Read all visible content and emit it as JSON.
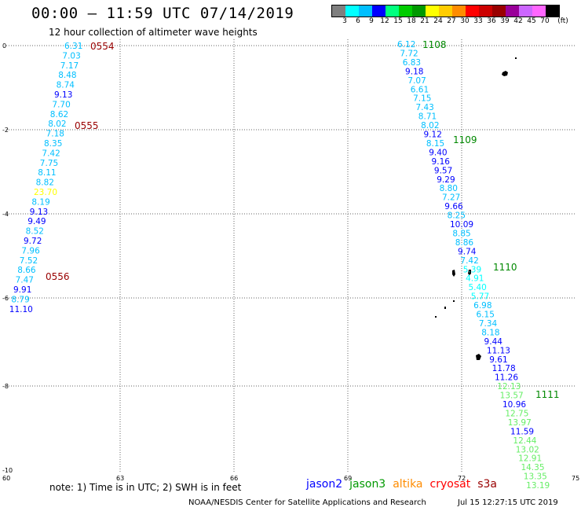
{
  "title": "00:00 — 11:59 UTC 07/14/2019",
  "subtitle": "12 hour collection of altimeter wave heights",
  "colorbar": {
    "unit_label": "(ft)",
    "labels": [
      "3",
      "6",
      "9",
      "12",
      "15",
      "18",
      "21",
      "24",
      "27",
      "30",
      "33",
      "36",
      "39",
      "42",
      "45",
      "70"
    ],
    "colors": [
      "#7f7f7f",
      "#00ffff",
      "#00bfff",
      "#0000ff",
      "#00ff7f",
      "#00cc00",
      "#009900",
      "#ffff00",
      "#ffcc00",
      "#ff8c00",
      "#ff0000",
      "#cc0000",
      "#990000",
      "#990099",
      "#cc66ff",
      "#ff66ff",
      "#000000"
    ]
  },
  "axes": {
    "x_ticks": [
      "60",
      "63",
      "66",
      "69",
      "72",
      "75"
    ],
    "y_ticks": [
      "0",
      "-2",
      "-4",
      "-6",
      "-8",
      "-10"
    ]
  },
  "pass_colors": {
    "jason2": "#0000ff",
    "cyan": "#00bfff",
    "s3a": "#00ffff",
    "light": "#66ee66",
    "warn": "#ffff00",
    "time": "#990000",
    "time_green": "#008800"
  },
  "tracks": [
    {
      "labels": [
        {
          "v": "6.31",
          "c": "cyan"
        },
        {
          "v": "7.03",
          "c": "cyan"
        },
        {
          "v": "7.17",
          "c": "cyan"
        },
        {
          "v": "8.48",
          "c": "cyan"
        },
        {
          "v": "8.74",
          "c": "cyan"
        },
        {
          "v": "9.13",
          "c": "jason2"
        },
        {
          "v": "7.70",
          "c": "cyan"
        },
        {
          "v": "8.62",
          "c": "cyan"
        },
        {
          "v": "8.02",
          "c": "cyan"
        },
        {
          "v": "7.18",
          "c": "cyan"
        },
        {
          "v": "8.35",
          "c": "cyan"
        },
        {
          "v": "7.42",
          "c": "cyan"
        },
        {
          "v": "7.75",
          "c": "cyan"
        },
        {
          "v": "8.11",
          "c": "cyan"
        },
        {
          "v": "8.82",
          "c": "cyan"
        },
        {
          "v": "23.70",
          "c": "warn"
        },
        {
          "v": "8.19",
          "c": "cyan"
        },
        {
          "v": "9.13",
          "c": "jason2"
        },
        {
          "v": "9.49",
          "c": "jason2"
        },
        {
          "v": "8.52",
          "c": "cyan"
        },
        {
          "v": "9.72",
          "c": "jason2"
        },
        {
          "v": "7.96",
          "c": "cyan"
        },
        {
          "v": "7.52",
          "c": "cyan"
        },
        {
          "v": "8.66",
          "c": "cyan"
        },
        {
          "v": "7.47",
          "c": "cyan"
        },
        {
          "v": "9.91",
          "c": "jason2"
        },
        {
          "v": "8.79",
          "c": "cyan"
        },
        {
          "v": "11.10",
          "c": "jason2"
        }
      ]
    },
    {
      "labels": [
        {
          "v": "6.12",
          "c": "cyan"
        },
        {
          "v": "7.72",
          "c": "cyan"
        },
        {
          "v": "6.83",
          "c": "cyan"
        },
        {
          "v": "9.18",
          "c": "jason2"
        },
        {
          "v": "7.07",
          "c": "cyan"
        },
        {
          "v": "6.61",
          "c": "cyan"
        },
        {
          "v": "7.15",
          "c": "cyan"
        },
        {
          "v": "7.43",
          "c": "cyan"
        },
        {
          "v": "8.71",
          "c": "cyan"
        },
        {
          "v": "8.02",
          "c": "cyan"
        },
        {
          "v": "9.12",
          "c": "jason2"
        },
        {
          "v": "8.15",
          "c": "cyan"
        },
        {
          "v": "9.40",
          "c": "jason2"
        },
        {
          "v": "9.16",
          "c": "jason2"
        },
        {
          "v": "9.57",
          "c": "jason2"
        },
        {
          "v": "9.29",
          "c": "jason2"
        },
        {
          "v": "8.80",
          "c": "cyan"
        },
        {
          "v": "7.27",
          "c": "cyan"
        },
        {
          "v": "9.66",
          "c": "jason2"
        },
        {
          "v": "8.25",
          "c": "cyan"
        },
        {
          "v": "10.09",
          "c": "jason2"
        },
        {
          "v": "8.85",
          "c": "cyan"
        },
        {
          "v": "8.86",
          "c": "cyan"
        },
        {
          "v": "9.74",
          "c": "jason2"
        },
        {
          "v": "7.42",
          "c": "cyan"
        },
        {
          "v": "5.39",
          "c": "s3a"
        },
        {
          "v": "4.91",
          "c": "s3a"
        },
        {
          "v": "5.40",
          "c": "s3a"
        },
        {
          "v": "5.77",
          "c": "s3a"
        },
        {
          "v": "6.98",
          "c": "cyan"
        },
        {
          "v": "6.15",
          "c": "cyan"
        },
        {
          "v": "7.34",
          "c": "cyan"
        },
        {
          "v": "8.18",
          "c": "cyan"
        },
        {
          "v": "9.44",
          "c": "jason2"
        },
        {
          "v": "11.13",
          "c": "jason2"
        },
        {
          "v": "9.61",
          "c": "jason2"
        },
        {
          "v": "11.78",
          "c": "jason2"
        },
        {
          "v": "11.26",
          "c": "jason2"
        },
        {
          "v": "12.13",
          "c": "light"
        },
        {
          "v": "13.57",
          "c": "light"
        },
        {
          "v": "10.96",
          "c": "jason2"
        },
        {
          "v": "12.75",
          "c": "light"
        },
        {
          "v": "13.97",
          "c": "light"
        },
        {
          "v": "11.59",
          "c": "jason2"
        },
        {
          "v": "12.44",
          "c": "light"
        },
        {
          "v": "13.02",
          "c": "light"
        },
        {
          "v": "12.91",
          "c": "light"
        },
        {
          "v": "14.35",
          "c": "light"
        },
        {
          "v": "13.35",
          "c": "light"
        },
        {
          "v": "13.19",
          "c": "light"
        }
      ]
    }
  ],
  "time_labels": [
    "0554",
    "0555",
    "0556",
    "1108",
    "1109",
    "1110",
    "1111"
  ],
  "note": "note: 1) Time is in UTC; 2) SWH is in feet",
  "satellites": [
    {
      "name": "jason2",
      "color": "#0000ff"
    },
    {
      "name": "jason3",
      "color": "#009900"
    },
    {
      "name": "altika",
      "color": "#ff8c00"
    },
    {
      "name": "cryosat",
      "color": "#ff0000"
    },
    {
      "name": "s3a",
      "color": "#990000"
    }
  ],
  "credit": "NOAA/NESDIS Center for Satellite Applications and Research",
  "timestamp": "Jul 15 12:27:15 UTC 2019"
}
